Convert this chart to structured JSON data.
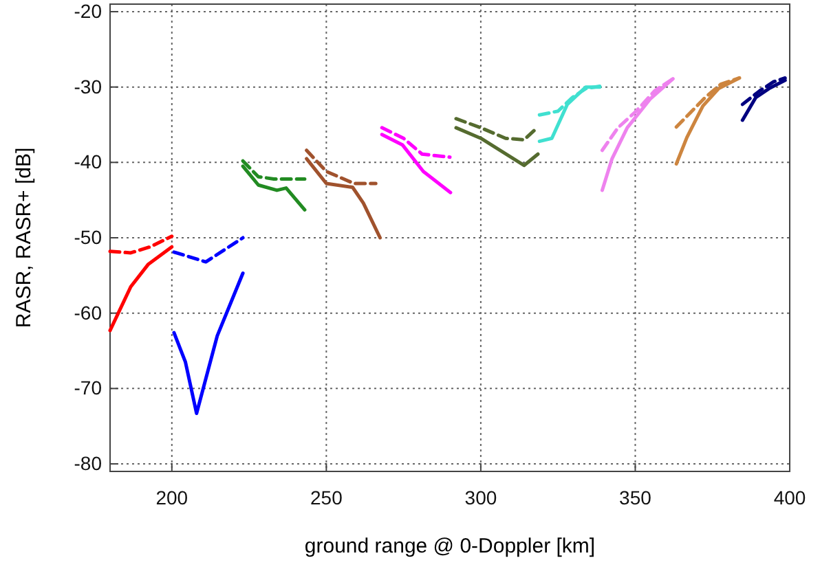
{
  "chart_data": {
    "type": "line",
    "xlabel": "ground range @ 0-Doppler [km]",
    "ylabel": "RASR, RASR+ [dB]",
    "xlim": [
      180,
      400
    ],
    "ylim": [
      -81,
      -19
    ],
    "xticks": [
      200,
      250,
      300,
      350,
      400
    ],
    "yticks": [
      -80,
      -70,
      -60,
      -50,
      -40,
      -30,
      -20
    ],
    "grid": true,
    "series": [
      {
        "color": "#ff0000",
        "line_style": "solid",
        "x": [
          180,
          186.7,
          192.4,
          200
        ],
        "values": [
          -62.3,
          -56.5,
          -53.5,
          -51.2
        ]
      },
      {
        "color": "#ff0000",
        "line_style": "dashed",
        "x": [
          180,
          186.7,
          193,
          200
        ],
        "values": [
          -51.8,
          -52,
          -51.2,
          -49.8
        ]
      },
      {
        "color": "#0000ff",
        "line_style": "solid",
        "x": [
          200.7,
          204.4,
          208,
          214.7,
          223
        ],
        "values": [
          -62.6,
          -66.5,
          -73.3,
          -63,
          -54.7
        ]
      },
      {
        "color": "#0000ff",
        "line_style": "dashed",
        "x": [
          200.7,
          211,
          223
        ],
        "values": [
          -51.9,
          -53.2,
          -50
        ]
      },
      {
        "color": "#228b22",
        "line_style": "solid",
        "x": [
          223,
          228,
          234,
          237,
          243
        ],
        "values": [
          -40.5,
          -43,
          -43.7,
          -43.4,
          -46.3
        ]
      },
      {
        "color": "#228b22",
        "line_style": "dashed",
        "x": [
          223,
          228,
          233,
          243
        ],
        "values": [
          -39.8,
          -41.9,
          -42.2,
          -42.2
        ]
      },
      {
        "color": "#a0522d",
        "line_style": "solid",
        "x": [
          243.6,
          250,
          258.5,
          262,
          267.4
        ],
        "values": [
          -39.5,
          -42.8,
          -43.3,
          -45.4,
          -50
        ]
      },
      {
        "color": "#a0522d",
        "line_style": "dashed",
        "x": [
          243.6,
          250,
          259,
          266
        ],
        "values": [
          -38.4,
          -41.2,
          -42.8,
          -42.8
        ]
      },
      {
        "color": "#ff00ff",
        "line_style": "solid",
        "x": [
          268,
          274.7,
          281.4,
          290.2
        ],
        "values": [
          -36.3,
          -37.7,
          -41.2,
          -44
        ]
      },
      {
        "color": "#ff00ff",
        "line_style": "dashed",
        "x": [
          268,
          275,
          281,
          290
        ],
        "values": [
          -35.4,
          -36.8,
          -38.9,
          -39.3
        ]
      },
      {
        "color": "#556b2f",
        "line_style": "solid",
        "x": [
          292,
          300,
          314,
          318.5
        ],
        "values": [
          -35.4,
          -36.8,
          -40.4,
          -38.9
        ]
      },
      {
        "color": "#556b2f",
        "line_style": "dashed",
        "x": [
          292,
          300,
          308,
          314,
          318.5
        ],
        "values": [
          -34.2,
          -35.4,
          -36.8,
          -37,
          -35.3
        ]
      },
      {
        "color": "#40e0d0",
        "line_style": "solid",
        "x": [
          319,
          323,
          328,
          334,
          338.5
        ],
        "values": [
          -37.2,
          -36.8,
          -32.3,
          -30,
          -30
        ]
      },
      {
        "color": "#40e0d0",
        "line_style": "dashed",
        "x": [
          319,
          325,
          329.6,
          334,
          338.5
        ],
        "values": [
          -33.7,
          -33.2,
          -31.4,
          -30.2,
          -29.9
        ]
      },
      {
        "color": "#ee82ee",
        "line_style": "solid",
        "x": [
          339.3,
          342.5,
          347.4,
          354.8,
          362.2
        ],
        "values": [
          -43.7,
          -39.5,
          -35.4,
          -31.6,
          -28.9
        ]
      },
      {
        "color": "#ee82ee",
        "line_style": "dashed",
        "x": [
          339.3,
          344.4,
          350.3,
          356.3,
          362.2
        ],
        "values": [
          -38.4,
          -35.4,
          -33.2,
          -30.5,
          -28.9
        ]
      },
      {
        "color": "#cd853f",
        "line_style": "solid",
        "x": [
          363.3,
          366.7,
          371.9,
          377,
          383.7
        ],
        "values": [
          -40.2,
          -36.7,
          -32.5,
          -30.2,
          -28.8
        ]
      },
      {
        "color": "#cd853f",
        "line_style": "dashed",
        "x": [
          363.3,
          368.1,
          372.6,
          377.8,
          383.7
        ],
        "values": [
          -35.3,
          -33.3,
          -31.4,
          -29.6,
          -28.8
        ]
      },
      {
        "color": "#000080",
        "line_style": "solid",
        "x": [
          384.7,
          389,
          393.3,
          398.5
        ],
        "values": [
          -34.4,
          -31.4,
          -30.2,
          -29.1
        ]
      },
      {
        "color": "#000080",
        "line_style": "dashed",
        "x": [
          384.7,
          390.3,
          394.8,
          398.5
        ],
        "values": [
          -32.3,
          -30.5,
          -29.3,
          -28.8
        ]
      }
    ]
  }
}
